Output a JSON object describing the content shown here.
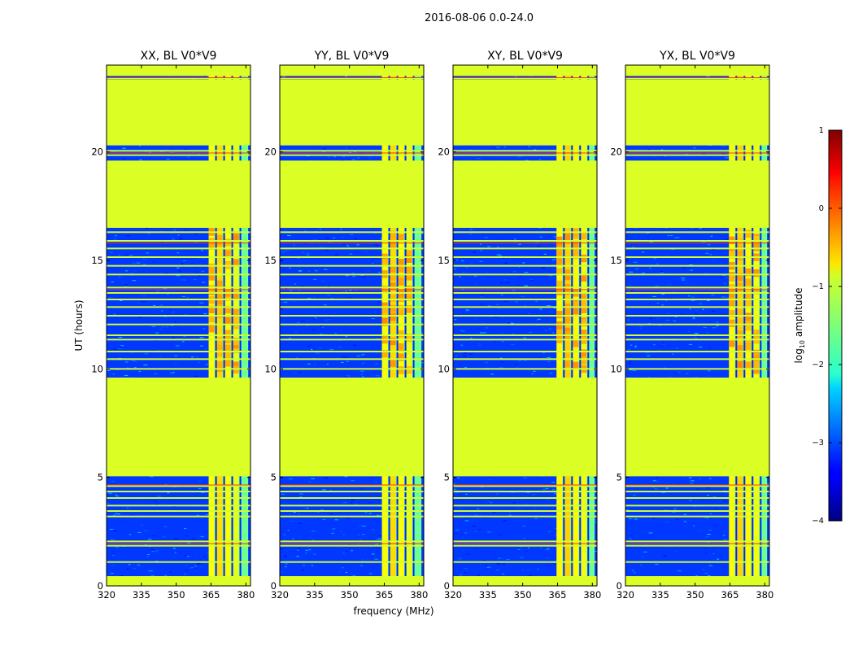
{
  "chart_data": {
    "type": "heatmap",
    "title": "2016-08-06 0.0-24.0",
    "xlabel": "frequency (MHz)",
    "ylabel": "UT (hours)",
    "xlim": [
      320,
      382
    ],
    "ylim": [
      0,
      24
    ],
    "xticks": [
      320,
      335,
      350,
      365,
      380
    ],
    "yticks": [
      0,
      5,
      10,
      15,
      20
    ],
    "colorbar": {
      "label": "log",
      "label_sub": "10",
      "label_rest": " amplitude",
      "ticks": [
        1,
        0,
        -1,
        -2,
        -3,
        -4
      ],
      "tick_labels": [
        "1",
        "0",
        "−1",
        "−2",
        "−3",
        "−4"
      ],
      "range": [
        -4,
        1
      ],
      "colormap": "jet"
    },
    "panels": [
      {
        "title": "XX, BL V0*V9"
      },
      {
        "title": "YY, BL V0*V9"
      },
      {
        "title": "XY, BL V0*V9"
      },
      {
        "title": "YX, BL V0*V9"
      }
    ],
    "masked_value": -1.05,
    "background_value": -3.1,
    "masked_time_blocks": [
      [
        0,
        0.45
      ],
      [
        5.05,
        9.6
      ],
      [
        16.5,
        19.6
      ],
      [
        20.3,
        23.35
      ],
      [
        23.5,
        24
      ]
    ],
    "rfi_channel_band": [
      364,
      381
    ],
    "rfi_subbands": [
      [
        364,
        366.5
      ],
      [
        367.5,
        370
      ],
      [
        371,
        373.5
      ],
      [
        374.5,
        377
      ]
    ],
    "rfi_band_values": [
      -0.9,
      -0.7,
      -0.9,
      -1.0
    ],
    "flag_lines_ut": [
      1.1,
      1.85,
      2.05,
      3.2,
      3.45,
      3.7,
      4.05,
      4.35,
      4.6,
      10.0,
      10.45,
      10.8,
      11.35,
      11.55,
      12.05,
      12.45,
      12.85,
      13.2,
      13.5,
      13.75,
      14.35,
      14.75,
      15.15,
      15.55,
      15.9,
      16.3,
      19.85,
      20.05,
      23.4
    ],
    "hot_lines_ut": [
      1.95,
      4.65,
      13.65,
      15.8,
      19.95,
      23.42
    ]
  }
}
